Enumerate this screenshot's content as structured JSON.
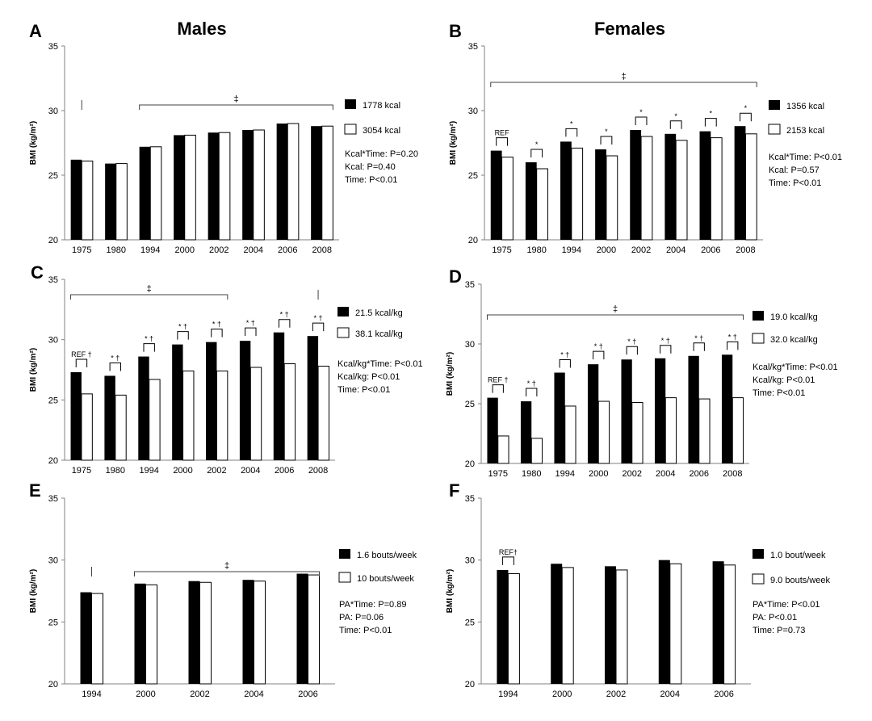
{
  "headers": {
    "males": "Males",
    "females": "Females"
  },
  "y_axis_label": "BMI (kg/m²)",
  "colors": {
    "series1": "#000000",
    "series2": "#ffffff",
    "axis": "#808080"
  },
  "chart_data": [
    {
      "type": "bar",
      "panel": "A",
      "ylim": [
        20,
        35
      ],
      "yticks": [
        20,
        25,
        30,
        35
      ],
      "categories": [
        "1975",
        "1980",
        "1994",
        "2000",
        "2002",
        "2004",
        "2006",
        "2008"
      ],
      "series": [
        {
          "name": "1778 kcal",
          "values": [
            26.2,
            25.9,
            27.2,
            28.1,
            28.3,
            28.5,
            29.0,
            28.8
          ]
        },
        {
          "name": "3054 kcal",
          "values": [
            26.1,
            25.9,
            27.2,
            28.1,
            28.3,
            28.5,
            29.0,
            28.8
          ]
        }
      ],
      "stats": [
        "Kcal*Time: P=0.20",
        "Kcal: P=0.40",
        "Time: P<0.01"
      ],
      "annotations": [],
      "significance": [
        {
          "symbol": "|",
          "start": 0,
          "end": 0
        },
        {
          "symbol": "‡",
          "start": 2,
          "end": 7
        }
      ]
    },
    {
      "type": "bar",
      "panel": "B",
      "ylim": [
        20,
        35
      ],
      "yticks": [
        20,
        25,
        30,
        35
      ],
      "categories": [
        "1975",
        "1980",
        "1994",
        "2000",
        "2002",
        "2004",
        "2006",
        "2008"
      ],
      "series": [
        {
          "name": "1356 kcal",
          "values": [
            26.9,
            26.0,
            27.6,
            27.0,
            28.5,
            28.2,
            28.4,
            28.8
          ]
        },
        {
          "name": "2153 kcal",
          "values": [
            26.4,
            25.5,
            27.1,
            26.5,
            28.0,
            27.7,
            27.9,
            28.2
          ]
        }
      ],
      "stats": [
        "Kcal*Time: P<0.01",
        "Kcal: P=0.57",
        "Time: P<0.01"
      ],
      "annotations": [
        "REF",
        "*",
        "*",
        "*",
        "*",
        "*",
        "*",
        "*"
      ],
      "significance": [
        {
          "symbol": "‡",
          "start": 0,
          "end": 7
        }
      ]
    },
    {
      "type": "bar",
      "panel": "C",
      "ylim": [
        20,
        35
      ],
      "yticks": [
        20,
        25,
        30,
        35
      ],
      "categories": [
        "1975",
        "1980",
        "1994",
        "2000",
        "2002",
        "2004",
        "2006",
        "2008"
      ],
      "series": [
        {
          "name": "21.5 kcal/kg",
          "values": [
            27.3,
            27.0,
            28.6,
            29.6,
            29.8,
            29.9,
            30.6,
            30.3
          ]
        },
        {
          "name": "38.1 kcal/kg",
          "values": [
            25.5,
            25.4,
            26.7,
            27.4,
            27.4,
            27.7,
            28.0,
            27.8
          ]
        }
      ],
      "stats": [
        "Kcal/kg*Time: P<0.01",
        "Kcal/kg: P<0.01",
        "Time: P<0.01"
      ],
      "annotations": [
        "REF †",
        "* †",
        "* †",
        "* †",
        "* †",
        "* †",
        "* †",
        "* †"
      ],
      "significance": [
        {
          "symbol": "‡",
          "start": 0,
          "end": 4
        },
        {
          "symbol": "|",
          "start": 7,
          "end": 7
        }
      ]
    },
    {
      "type": "bar",
      "panel": "D",
      "ylim": [
        20,
        35
      ],
      "yticks": [
        20,
        25,
        30,
        35
      ],
      "categories": [
        "1975",
        "1980",
        "1994",
        "2000",
        "2002",
        "2004",
        "2006",
        "2008"
      ],
      "series": [
        {
          "name": "19.0 kcal/kg",
          "values": [
            25.5,
            25.2,
            27.6,
            28.3,
            28.7,
            28.8,
            29.0,
            29.1
          ]
        },
        {
          "name": "32.0 kcal/kg",
          "values": [
            22.3,
            22.1,
            24.8,
            25.2,
            25.1,
            25.5,
            25.4,
            25.5
          ]
        }
      ],
      "stats": [
        "Kcal/kg*Time: P<0.01",
        "Kcal/kg: P<0.01",
        "Time: P<0.01"
      ],
      "annotations": [
        "REF †",
        "* †",
        "* †",
        "* †",
        "* †",
        "* †",
        "* †",
        "* †"
      ],
      "significance": [
        {
          "symbol": "‡",
          "start": 0,
          "end": 7
        }
      ]
    },
    {
      "type": "bar",
      "panel": "E",
      "ylim": [
        20,
        35
      ],
      "yticks": [
        20,
        25,
        30,
        35
      ],
      "categories": [
        "1994",
        "2000",
        "2002",
        "2004",
        "2006"
      ],
      "series": [
        {
          "name": "1.6 bouts/week",
          "values": [
            27.4,
            28.1,
            28.3,
            28.4,
            28.9
          ]
        },
        {
          "name": "10 bouts/week",
          "values": [
            27.3,
            28.0,
            28.2,
            28.3,
            28.8
          ]
        }
      ],
      "stats": [
        "PA*Time: P=0.89",
        "PA: P=0.06",
        "Time: P<0.01"
      ],
      "annotations": [],
      "significance": [
        {
          "symbol": "|",
          "start": 0,
          "end": 0
        },
        {
          "symbol": "‡",
          "start": 1,
          "end": 4
        }
      ]
    },
    {
      "type": "bar",
      "panel": "F",
      "ylim": [
        20,
        35
      ],
      "yticks": [
        20,
        25,
        30,
        35
      ],
      "categories": [
        "1994",
        "2000",
        "2002",
        "2004",
        "2006"
      ],
      "series": [
        {
          "name": "1.0 bout/week",
          "values": [
            29.2,
            29.7,
            29.5,
            30.0,
            29.9
          ]
        },
        {
          "name": "9.0 bouts/week",
          "values": [
            28.9,
            29.4,
            29.2,
            29.7,
            29.6
          ]
        }
      ],
      "stats": [
        "PA*Time: P<0.01",
        "PA: P<0.01",
        "Time: P=0.73"
      ],
      "annotations": [
        "REF†"
      ],
      "significance": []
    }
  ]
}
